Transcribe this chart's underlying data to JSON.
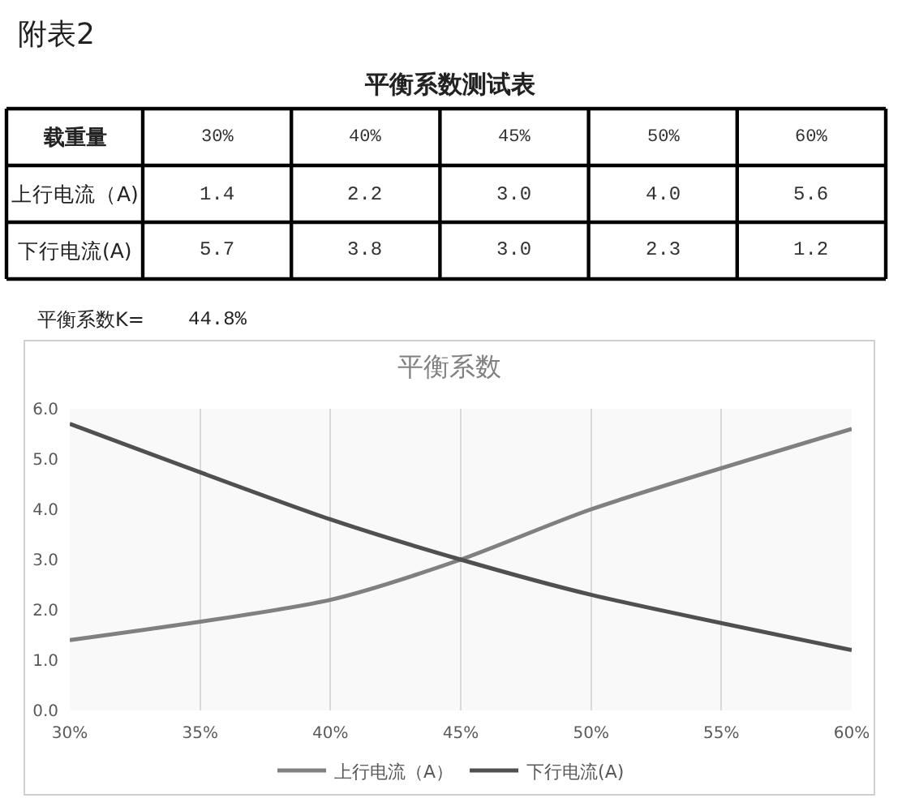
{
  "chart_data": [
    {
      "type": "other",
      "title": "平衡系数测试表",
      "xlabel": "载重量",
      "categories": [
        "30%",
        "40%",
        "45%",
        "50%",
        "60%"
      ],
      "series": [
        {
          "name": "上行电流（A)",
          "values": [
            1.4,
            2.2,
            3.0,
            4.0,
            5.6
          ],
          "value_labels": [
            "1.4",
            "2.2",
            "3.0",
            "4.0",
            "5.6"
          ]
        },
        {
          "name": "下行电流(A)",
          "values": [
            5.7,
            3.8,
            3.0,
            2.3,
            1.2
          ],
          "value_labels": [
            "5.7",
            "3.8",
            "3.0",
            "2.3",
            "1.2"
          ]
        }
      ],
      "annotations": [
        "附表2",
        "平衡系数K=",
        "44.8%"
      ]
    },
    {
      "type": "line",
      "title": "平衡系数",
      "x": [
        30,
        40,
        45,
        50,
        60
      ],
      "series": [
        {
          "name": "上行电流（A）",
          "color": "#808080",
          "values": [
            1.4,
            2.2,
            3.0,
            4.0,
            5.6
          ]
        },
        {
          "name": "下行电流(A)",
          "color": "#505050",
          "values": [
            5.7,
            3.8,
            3.0,
            2.3,
            1.2
          ]
        }
      ],
      "xlim": [
        30,
        60
      ],
      "xticks": [
        {
          "value": 30,
          "label": "30%"
        },
        {
          "value": 35,
          "label": "35%"
        },
        {
          "value": 40,
          "label": "40%"
        },
        {
          "value": 45,
          "label": "45%"
        },
        {
          "value": 50,
          "label": "50%"
        },
        {
          "value": 55,
          "label": "55%"
        },
        {
          "value": 60,
          "label": "60%"
        }
      ],
      "ylim": [
        0,
        6
      ],
      "yticks": [
        {
          "value": 0,
          "label": "0.0"
        },
        {
          "value": 1,
          "label": "1.0"
        },
        {
          "value": 2,
          "label": "2.0"
        },
        {
          "value": 3,
          "label": "3.0"
        },
        {
          "value": 4,
          "label": "4.0"
        },
        {
          "value": 5,
          "label": "5.0"
        },
        {
          "value": 6,
          "label": "6.0"
        }
      ],
      "grid": "x",
      "legend": "bottom",
      "marker": "none",
      "line_style": "solid"
    }
  ]
}
